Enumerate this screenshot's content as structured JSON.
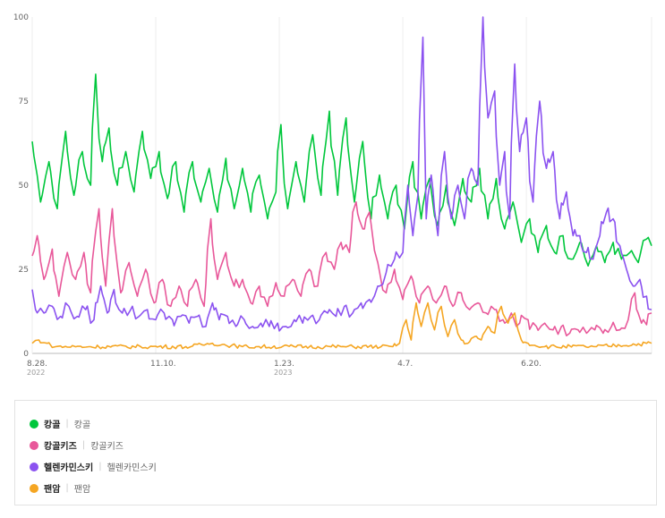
{
  "chart_data": {
    "type": "line",
    "title": "",
    "xlabel": "",
    "ylabel": "",
    "ylim": [
      0,
      100
    ],
    "yticks": [
      0,
      25,
      50,
      75,
      100
    ],
    "x_start": "2022-08-28",
    "x_end": "2023-09-03",
    "x_ticks": [
      {
        "date": "2022-08-28",
        "label": "8.28.",
        "sub": "2022"
      },
      {
        "date": "2022-11-10",
        "label": "11.10.",
        "sub": ""
      },
      {
        "date": "2023-01-23",
        "label": "1.23.",
        "sub": "2023"
      },
      {
        "date": "2023-04-07",
        "label": "4.7.",
        "sub": ""
      },
      {
        "date": "2023-06-20",
        "label": "6.20.",
        "sub": ""
      }
    ],
    "grid": "vertical",
    "legend_position": "bottom",
    "series": [
      {
        "name": "캉골",
        "keyword": "캉골",
        "color": "#00c73c",
        "keypoints": [
          [
            "2022-08-28",
            63
          ],
          [
            "2022-09-02",
            45
          ],
          [
            "2022-09-07",
            57
          ],
          [
            "2022-09-12",
            43
          ],
          [
            "2022-09-17",
            66
          ],
          [
            "2022-09-22",
            47
          ],
          [
            "2022-09-27",
            60
          ],
          [
            "2022-10-02",
            50
          ],
          [
            "2022-10-05",
            83
          ],
          [
            "2022-10-09",
            57
          ],
          [
            "2022-10-13",
            67
          ],
          [
            "2022-10-18",
            50
          ],
          [
            "2022-10-23",
            60
          ],
          [
            "2022-10-28",
            48
          ],
          [
            "2022-11-02",
            66
          ],
          [
            "2022-11-07",
            52
          ],
          [
            "2022-11-12",
            60
          ],
          [
            "2022-11-17",
            46
          ],
          [
            "2022-11-22",
            57
          ],
          [
            "2022-11-27",
            42
          ],
          [
            "2022-12-02",
            57
          ],
          [
            "2022-12-07",
            45
          ],
          [
            "2022-12-12",
            55
          ],
          [
            "2022-12-17",
            42
          ],
          [
            "2022-12-22",
            58
          ],
          [
            "2022-12-27",
            43
          ],
          [
            "2023-01-01",
            55
          ],
          [
            "2023-01-06",
            42
          ],
          [
            "2023-01-11",
            53
          ],
          [
            "2023-01-16",
            40
          ],
          [
            "2023-01-21",
            48
          ],
          [
            "2023-01-24",
            68
          ],
          [
            "2023-01-28",
            43
          ],
          [
            "2023-02-02",
            57
          ],
          [
            "2023-02-07",
            45
          ],
          [
            "2023-02-12",
            65
          ],
          [
            "2023-02-17",
            47
          ],
          [
            "2023-02-22",
            72
          ],
          [
            "2023-02-27",
            47
          ],
          [
            "2023-03-04",
            70
          ],
          [
            "2023-03-09",
            45
          ],
          [
            "2023-03-14",
            63
          ],
          [
            "2023-03-19",
            40
          ],
          [
            "2023-03-24",
            53
          ],
          [
            "2023-03-29",
            40
          ],
          [
            "2023-04-03",
            50
          ],
          [
            "2023-04-08",
            37
          ],
          [
            "2023-04-13",
            57
          ],
          [
            "2023-04-18",
            40
          ],
          [
            "2023-04-23",
            52
          ],
          [
            "2023-04-28",
            38
          ],
          [
            "2023-05-03",
            50
          ],
          [
            "2023-05-08",
            38
          ],
          [
            "2023-05-13",
            52
          ],
          [
            "2023-05-18",
            45
          ],
          [
            "2023-05-23",
            55
          ],
          [
            "2023-05-28",
            40
          ],
          [
            "2023-06-02",
            52
          ],
          [
            "2023-06-07",
            37
          ],
          [
            "2023-06-12",
            45
          ],
          [
            "2023-06-17",
            33
          ],
          [
            "2023-06-22",
            40
          ],
          [
            "2023-06-27",
            30
          ],
          [
            "2023-07-02",
            38
          ],
          [
            "2023-07-07",
            30
          ],
          [
            "2023-07-12",
            35
          ],
          [
            "2023-07-17",
            28
          ],
          [
            "2023-07-22",
            33
          ],
          [
            "2023-07-27",
            26
          ],
          [
            "2023-08-01",
            32
          ],
          [
            "2023-08-06",
            27
          ],
          [
            "2023-08-11",
            33
          ],
          [
            "2023-08-16",
            28
          ],
          [
            "2023-08-21",
            30
          ],
          [
            "2023-08-26",
            27
          ],
          [
            "2023-08-31",
            34
          ],
          [
            "2023-09-03",
            32
          ]
        ]
      },
      {
        "name": "캉골키즈",
        "keyword": "캉골키즈",
        "color": "#e8589a",
        "keypoints": [
          [
            "2022-08-28",
            29
          ],
          [
            "2022-08-31",
            35
          ],
          [
            "2022-09-04",
            22
          ],
          [
            "2022-09-09",
            31
          ],
          [
            "2022-09-13",
            17
          ],
          [
            "2022-09-18",
            30
          ],
          [
            "2022-09-23",
            22
          ],
          [
            "2022-09-28",
            30
          ],
          [
            "2022-10-02",
            18
          ],
          [
            "2022-10-07",
            43
          ],
          [
            "2022-10-11",
            20
          ],
          [
            "2022-10-15",
            43
          ],
          [
            "2022-10-20",
            18
          ],
          [
            "2022-10-25",
            27
          ],
          [
            "2022-10-30",
            17
          ],
          [
            "2022-11-04",
            25
          ],
          [
            "2022-11-09",
            15
          ],
          [
            "2022-11-14",
            22
          ],
          [
            "2022-11-19",
            14
          ],
          [
            "2022-11-24",
            20
          ],
          [
            "2022-11-29",
            14
          ],
          [
            "2022-12-04",
            22
          ],
          [
            "2022-12-09",
            14
          ],
          [
            "2022-12-13",
            40
          ],
          [
            "2022-12-17",
            22
          ],
          [
            "2022-12-22",
            30
          ],
          [
            "2022-12-27",
            20
          ],
          [
            "2023-01-01",
            22
          ],
          [
            "2023-01-06",
            15
          ],
          [
            "2023-01-11",
            20
          ],
          [
            "2023-01-16",
            14
          ],
          [
            "2023-01-21",
            21
          ],
          [
            "2023-01-26",
            17
          ],
          [
            "2023-01-31",
            22
          ],
          [
            "2023-02-05",
            17
          ],
          [
            "2023-02-10",
            25
          ],
          [
            "2023-02-15",
            20
          ],
          [
            "2023-02-20",
            30
          ],
          [
            "2023-02-25",
            25
          ],
          [
            "2023-03-01",
            33
          ],
          [
            "2023-03-06",
            30
          ],
          [
            "2023-03-10",
            45
          ],
          [
            "2023-03-14",
            37
          ],
          [
            "2023-03-18",
            42
          ],
          [
            "2023-03-23",
            27
          ],
          [
            "2023-03-28",
            18
          ],
          [
            "2023-04-02",
            25
          ],
          [
            "2023-04-07",
            16
          ],
          [
            "2023-04-12",
            23
          ],
          [
            "2023-04-17",
            15
          ],
          [
            "2023-04-22",
            20
          ],
          [
            "2023-04-27",
            15
          ],
          [
            "2023-05-02",
            20
          ],
          [
            "2023-05-07",
            14
          ],
          [
            "2023-05-12",
            18
          ],
          [
            "2023-05-17",
            13
          ],
          [
            "2023-05-22",
            15
          ],
          [
            "2023-05-27",
            12
          ],
          [
            "2023-06-01",
            13
          ],
          [
            "2023-06-06",
            10
          ],
          [
            "2023-06-11",
            12
          ],
          [
            "2023-06-16",
            9
          ],
          [
            "2023-06-21",
            10
          ],
          [
            "2023-06-26",
            8
          ],
          [
            "2023-07-01",
            9
          ],
          [
            "2023-07-06",
            7
          ],
          [
            "2023-07-11",
            8
          ],
          [
            "2023-07-16",
            6
          ],
          [
            "2023-07-21",
            7
          ],
          [
            "2023-07-26",
            6
          ],
          [
            "2023-07-31",
            7
          ],
          [
            "2023-08-05",
            6
          ],
          [
            "2023-08-10",
            8
          ],
          [
            "2023-08-15",
            7
          ],
          [
            "2023-08-20",
            10
          ],
          [
            "2023-08-24",
            18
          ],
          [
            "2023-08-28",
            9
          ],
          [
            "2023-09-03",
            12
          ]
        ]
      },
      {
        "name": "헬렌카민스키",
        "keyword": "헬렌카민스키",
        "color": "#8b52f0",
        "keypoints": [
          [
            "2022-08-28",
            19
          ],
          [
            "2022-08-30",
            13
          ],
          [
            "2022-09-04",
            12
          ],
          [
            "2022-09-09",
            14
          ],
          [
            "2022-09-14",
            11
          ],
          [
            "2022-09-19",
            14
          ],
          [
            "2022-09-24",
            11
          ],
          [
            "2022-09-29",
            13
          ],
          [
            "2022-10-04",
            10
          ],
          [
            "2022-10-08",
            20
          ],
          [
            "2022-10-12",
            12
          ],
          [
            "2022-10-16",
            19
          ],
          [
            "2022-10-21",
            12
          ],
          [
            "2022-10-26",
            13
          ],
          [
            "2022-10-31",
            11
          ],
          [
            "2022-11-05",
            13
          ],
          [
            "2022-11-10",
            10
          ],
          [
            "2022-11-15",
            12
          ],
          [
            "2022-11-20",
            10
          ],
          [
            "2022-11-25",
            11
          ],
          [
            "2022-11-30",
            9
          ],
          [
            "2022-12-05",
            11
          ],
          [
            "2022-12-10",
            8
          ],
          [
            "2022-12-14",
            15
          ],
          [
            "2022-12-18",
            10
          ],
          [
            "2022-12-23",
            11
          ],
          [
            "2022-12-28",
            8
          ],
          [
            "2023-01-02",
            10
          ],
          [
            "2023-01-07",
            8
          ],
          [
            "2023-01-12",
            9
          ],
          [
            "2023-01-17",
            8
          ],
          [
            "2023-01-22",
            9
          ],
          [
            "2023-01-27",
            8
          ],
          [
            "2023-02-01",
            10
          ],
          [
            "2023-02-06",
            9
          ],
          [
            "2023-02-11",
            11
          ],
          [
            "2023-02-16",
            10
          ],
          [
            "2023-02-21",
            12
          ],
          [
            "2023-02-26",
            11
          ],
          [
            "2023-03-03",
            14
          ],
          [
            "2023-03-08",
            12
          ],
          [
            "2023-03-13",
            15
          ],
          [
            "2023-03-18",
            16
          ],
          [
            "2023-03-23",
            20
          ],
          [
            "2023-03-28",
            24
          ],
          [
            "2023-04-02",
            28
          ],
          [
            "2023-04-07",
            30
          ],
          [
            "2023-04-10",
            50
          ],
          [
            "2023-04-13",
            35
          ],
          [
            "2023-04-16",
            47
          ],
          [
            "2023-04-19",
            94
          ],
          [
            "2023-04-21",
            40
          ],
          [
            "2023-04-24",
            53
          ],
          [
            "2023-04-28",
            35
          ],
          [
            "2023-05-02",
            60
          ],
          [
            "2023-05-06",
            40
          ],
          [
            "2023-05-10",
            50
          ],
          [
            "2023-05-14",
            40
          ],
          [
            "2023-05-18",
            55
          ],
          [
            "2023-05-22",
            50
          ],
          [
            "2023-05-25",
            100
          ],
          [
            "2023-05-28",
            70
          ],
          [
            "2023-06-01",
            78
          ],
          [
            "2023-06-04",
            50
          ],
          [
            "2023-06-07",
            60
          ],
          [
            "2023-06-10",
            40
          ],
          [
            "2023-06-13",
            86
          ],
          [
            "2023-06-16",
            60
          ],
          [
            "2023-06-20",
            70
          ],
          [
            "2023-06-24",
            45
          ],
          [
            "2023-06-28",
            75
          ],
          [
            "2023-07-02",
            55
          ],
          [
            "2023-07-06",
            60
          ],
          [
            "2023-07-10",
            40
          ],
          [
            "2023-07-14",
            48
          ],
          [
            "2023-07-18",
            35
          ],
          [
            "2023-07-22",
            35
          ],
          [
            "2023-07-26",
            30
          ],
          [
            "2023-07-30",
            28
          ],
          [
            "2023-08-03",
            35
          ],
          [
            "2023-08-07",
            42
          ],
          [
            "2023-08-11",
            40
          ],
          [
            "2023-08-15",
            32
          ],
          [
            "2023-08-19",
            25
          ],
          [
            "2023-08-23",
            20
          ],
          [
            "2023-08-27",
            22
          ],
          [
            "2023-08-31",
            17
          ],
          [
            "2023-09-03",
            13
          ]
        ]
      },
      {
        "name": "팬암",
        "keyword": "팬암",
        "color": "#f5a623",
        "keypoints": [
          [
            "2022-08-28",
            3
          ],
          [
            "2022-09-01",
            4
          ],
          [
            "2022-09-06",
            3
          ],
          [
            "2022-09-11",
            2
          ],
          [
            "2022-10-01",
            2
          ],
          [
            "2022-11-01",
            2
          ],
          [
            "2022-12-01",
            2
          ],
          [
            "2022-12-14",
            3
          ],
          [
            "2023-01-01",
            2
          ],
          [
            "2023-02-01",
            2
          ],
          [
            "2023-03-01",
            2
          ],
          [
            "2023-03-25",
            2
          ],
          [
            "2023-04-01",
            2
          ],
          [
            "2023-04-05",
            3
          ],
          [
            "2023-04-09",
            10
          ],
          [
            "2023-04-12",
            4
          ],
          [
            "2023-04-15",
            15
          ],
          [
            "2023-04-18",
            8
          ],
          [
            "2023-04-22",
            15
          ],
          [
            "2023-04-26",
            7
          ],
          [
            "2023-04-30",
            14
          ],
          [
            "2023-05-04",
            5
          ],
          [
            "2023-05-08",
            10
          ],
          [
            "2023-05-12",
            4
          ],
          [
            "2023-05-16",
            3
          ],
          [
            "2023-05-20",
            5
          ],
          [
            "2023-05-24",
            4
          ],
          [
            "2023-05-28",
            8
          ],
          [
            "2023-06-01",
            6
          ],
          [
            "2023-06-05",
            14
          ],
          [
            "2023-06-09",
            9
          ],
          [
            "2023-06-13",
            12
          ],
          [
            "2023-06-17",
            4
          ],
          [
            "2023-06-21",
            3
          ],
          [
            "2023-07-01",
            2
          ],
          [
            "2023-08-01",
            2
          ],
          [
            "2023-09-03",
            3
          ]
        ]
      }
    ]
  }
}
